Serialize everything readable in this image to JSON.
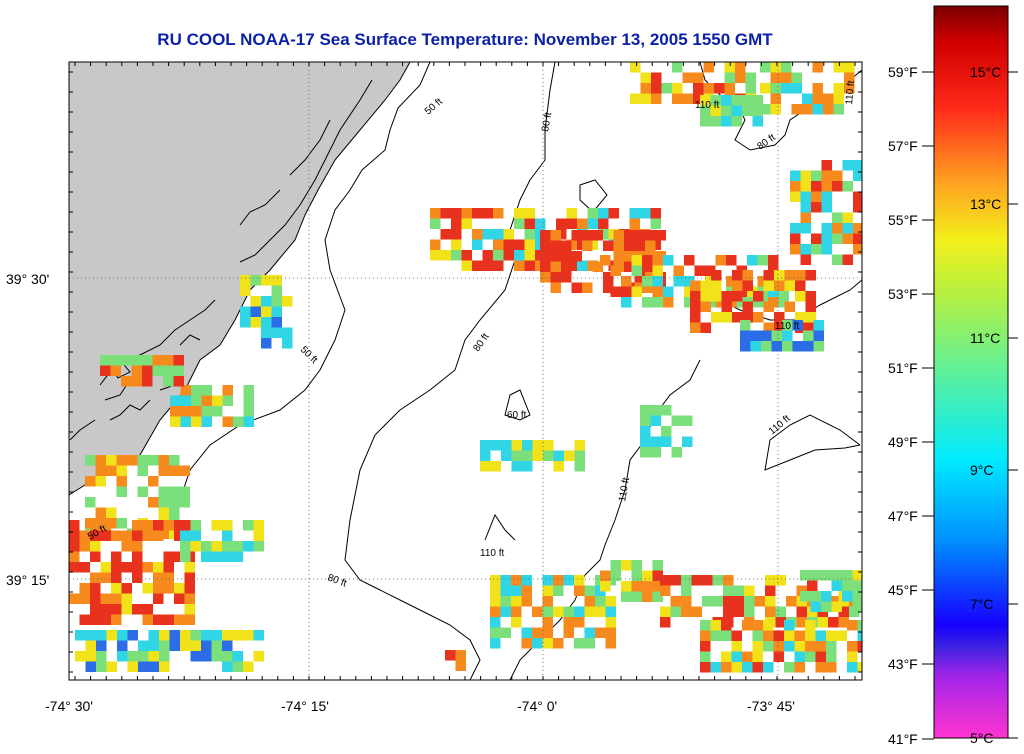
{
  "title": "RU COOL  NOAA-17  Sea Surface Temperature:  November 13, 2005 1550 GMT",
  "map": {
    "lat_labels": [
      "39° 30'",
      "39° 15'"
    ],
    "lon_labels": [
      "-74° 30'",
      "-74° 15'",
      "-74° 0'",
      "-73° 45'"
    ],
    "contour_labels": [
      "50 ft",
      "60 ft",
      "80 ft",
      "110 ft"
    ]
  },
  "colorbar": {
    "fahrenheit_labels": [
      "59°F",
      "57°F",
      "55°F",
      "53°F",
      "51°F",
      "49°F",
      "47°F",
      "45°F",
      "43°F",
      "41°F"
    ],
    "celsius_labels": [
      "15°C",
      "13°C",
      "11°C",
      "9°C",
      "7°C",
      "5°C"
    ],
    "range_c": [
      5,
      16
    ]
  },
  "colors": {
    "title": "#0b1fa8",
    "land": "#c8c8c8",
    "warm": "#e8321e",
    "orange": "#f78a1c",
    "yellow": "#f2e21a",
    "green": "#7be07b",
    "cyan": "#30d6e6",
    "blue": "#2b6de6"
  }
}
